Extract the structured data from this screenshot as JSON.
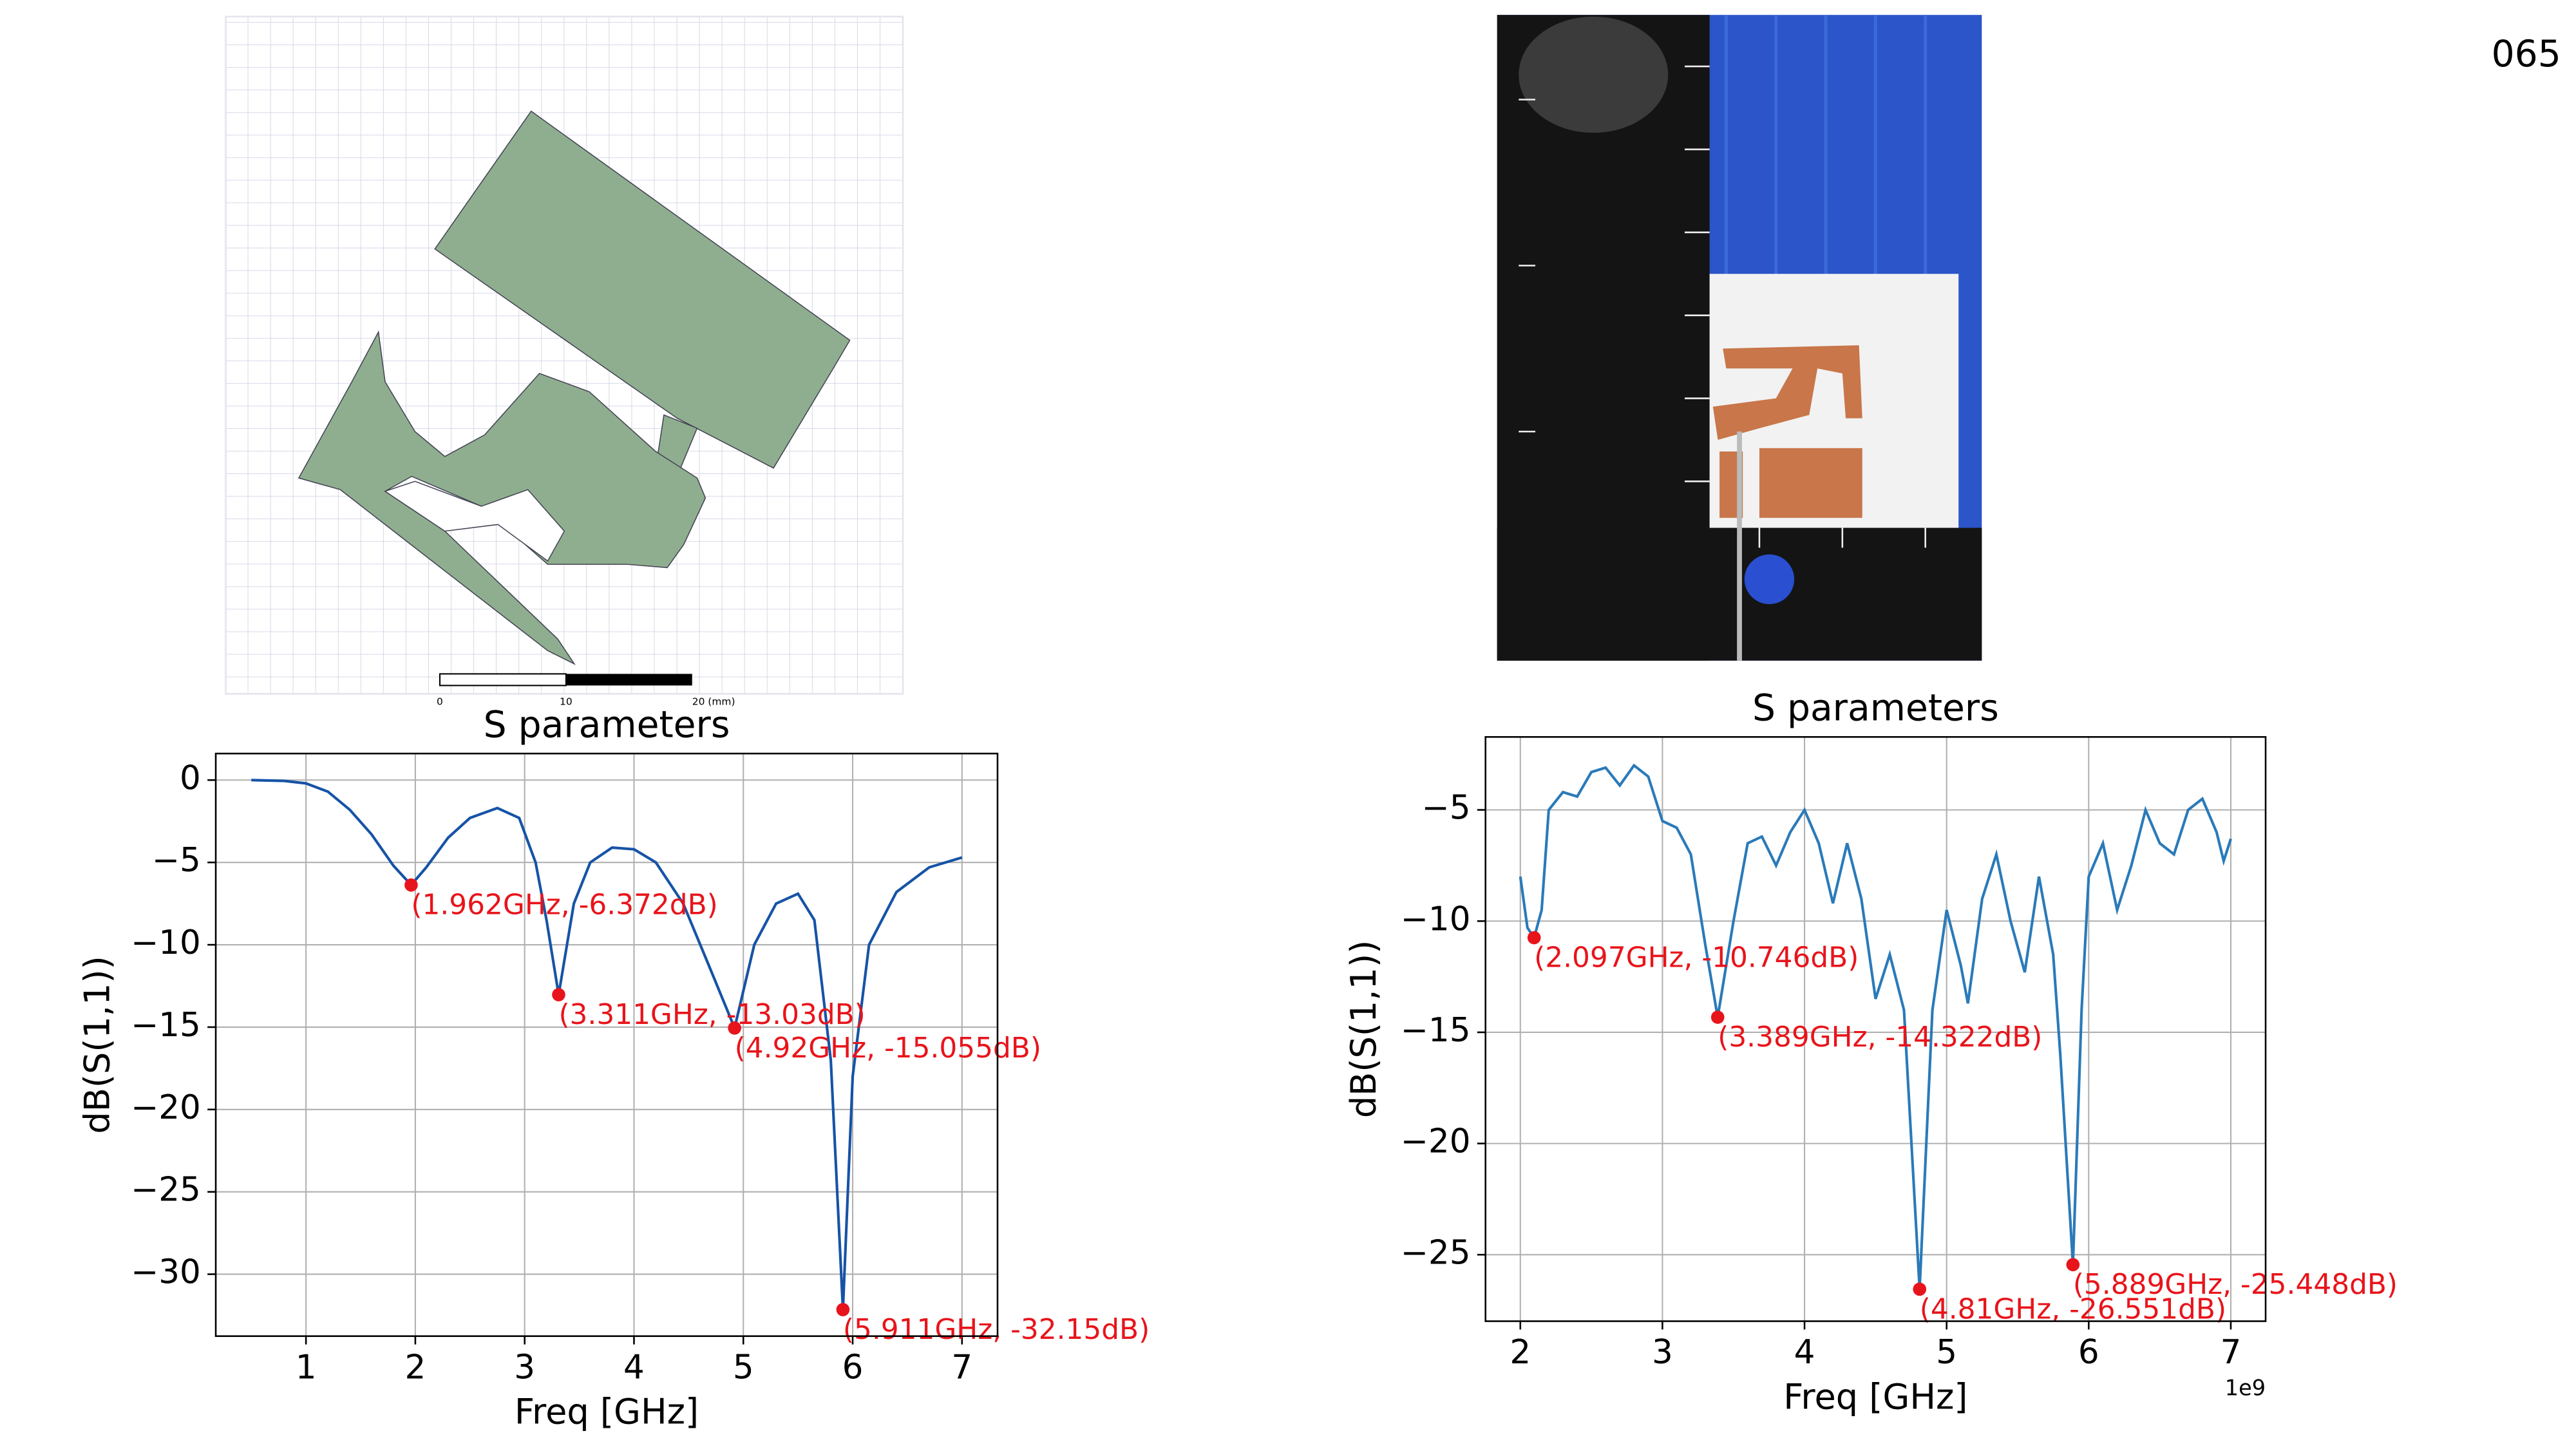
{
  "page_number": "065",
  "layout_figure": {
    "scale_labels": [
      "0",
      "10",
      "20 (mm)"
    ]
  },
  "chart_data": [
    {
      "type": "line",
      "title": "S parameters",
      "x_label": "Freq [GHz]",
      "y_label": "dB(S(1,1))",
      "xlim": [
        0.175,
        7.325
      ],
      "ylim": [
        -33.76,
        1.61
      ],
      "xticks": [
        1,
        2,
        3,
        4,
        5,
        6,
        7
      ],
      "yticks": [
        0,
        {
          "value": -5,
          "label": "−5"
        },
        {
          "value": -10,
          "label": "−10"
        },
        {
          "value": -15,
          "label": "−15"
        },
        {
          "value": -20,
          "label": "−20"
        },
        {
          "value": -25,
          "label": "−25"
        },
        {
          "value": -30,
          "label": "−30"
        }
      ],
      "grid": true,
      "series": [
        {
          "color": "#1653a6",
          "x": [
            0.5,
            0.8,
            1.0,
            1.2,
            1.4,
            1.6,
            1.8,
            1.962,
            2.1,
            2.3,
            2.5,
            2.75,
            2.95,
            3.1,
            3.2,
            3.311,
            3.45,
            3.6,
            3.8,
            4.0,
            4.2,
            4.45,
            4.7,
            4.92,
            5.1,
            5.3,
            5.5,
            5.65,
            5.8,
            5.911,
            6.0,
            6.15,
            6.4,
            6.7,
            7.0
          ],
          "values": [
            0,
            -0.05,
            -0.2,
            -0.7,
            -1.8,
            -3.3,
            -5.2,
            -6.372,
            -5.3,
            -3.5,
            -2.3,
            -1.7,
            -2.3,
            -5,
            -8.5,
            -13.03,
            -7.5,
            -5,
            -4.1,
            -4.2,
            -5,
            -7.5,
            -11.5,
            -15.055,
            -10,
            -7.5,
            -6.9,
            -8.5,
            -17,
            -32.15,
            -18,
            -10,
            -6.8,
            -5.3,
            -4.7
          ]
        }
      ],
      "marker_color": "#e8141b",
      "markers": [
        {
          "x": 1.962,
          "y": -6.372,
          "label": "(1.962GHz, -6.372dB)"
        },
        {
          "x": 3.311,
          "y": -13.03,
          "label": "(3.311GHz, -13.03dB)"
        },
        {
          "x": 4.92,
          "y": -15.055,
          "label": "(4.92GHz, -15.055dB)"
        },
        {
          "x": 5.911,
          "y": -32.15,
          "label": "(5.911GHz, -32.15dB)"
        }
      ]
    },
    {
      "type": "line",
      "title": "S parameters",
      "x_label": "Freq [GHz]",
      "y_label": "dB(S(1,1))",
      "x_offset_label": "1e9",
      "xlim": [
        1.755,
        7.245
      ],
      "ylim": [
        -27.99,
        -1.72
      ],
      "xticks": [
        2,
        3,
        4,
        5,
        6,
        7
      ],
      "yticks": [
        {
          "value": -5,
          "label": "−5"
        },
        {
          "value": -10,
          "label": "−10"
        },
        {
          "value": -15,
          "label": "−15"
        },
        {
          "value": -20,
          "label": "−20"
        },
        {
          "value": -25,
          "label": "−25"
        }
      ],
      "grid": true,
      "series": [
        {
          "color": "#2a7ab9",
          "x": [
            2,
            2.05,
            2.097,
            2.15,
            2.2,
            2.3,
            2.4,
            2.5,
            2.6,
            2.7,
            2.8,
            2.9,
            3.0,
            3.1,
            3.2,
            3.3,
            3.389,
            3.5,
            3.6,
            3.7,
            3.8,
            3.9,
            4.0,
            4.1,
            4.2,
            4.3,
            4.4,
            4.5,
            4.6,
            4.7,
            4.81,
            4.9,
            5.0,
            5.1,
            5.15,
            5.25,
            5.35,
            5.45,
            5.55,
            5.65,
            5.75,
            5.8,
            5.889,
            5.95,
            6.0,
            6.1,
            6.2,
            6.3,
            6.4,
            6.5,
            6.6,
            6.7,
            6.8,
            6.9,
            6.95,
            7.0
          ],
          "values": [
            -8,
            -10.3,
            -10.746,
            -9.5,
            -5,
            -4.2,
            -4.4,
            -3.3,
            -3.1,
            -3.9,
            -3,
            -3.5,
            -5.5,
            -5.8,
            -7,
            -11,
            -14.322,
            -10,
            -6.5,
            -6.2,
            -7.5,
            -6,
            -5,
            -6.5,
            -9.2,
            -6.5,
            -9,
            -13.5,
            -11.5,
            -14,
            -26.551,
            -14,
            -9.5,
            -12,
            -13.7,
            -9,
            -7,
            -10,
            -12.3,
            -8,
            -11.5,
            -16,
            -25.448,
            -14,
            -8,
            -6.5,
            -9.5,
            -7.5,
            -5,
            -6.5,
            -7,
            -5,
            -4.5,
            -6,
            -7.3,
            -6.3
          ]
        }
      ],
      "marker_color": "#e8141b",
      "markers": [
        {
          "x": 2.097,
          "y": -10.746,
          "label": "(2.097GHz, -10.746dB)"
        },
        {
          "x": 3.389,
          "y": -14.322,
          "label": "(3.389GHz, -14.322dB)"
        },
        {
          "x": 4.81,
          "y": -26.551,
          "label": "(4.81GHz, -26.551dB)"
        },
        {
          "x": 5.889,
          "y": -25.448,
          "label": "(5.889GHz, -25.448dB)"
        }
      ]
    }
  ]
}
